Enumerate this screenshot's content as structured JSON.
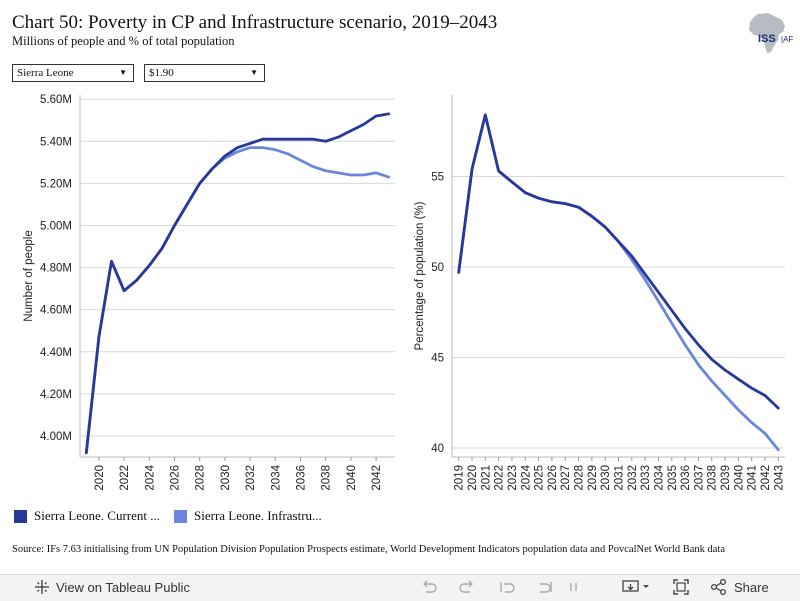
{
  "header": {
    "title": "Chart 50: Poverty in CP and Infrastructure scenario, 2019–2043",
    "subtitle": "Millions of people and % of total population",
    "logo_text": "ISS AFI"
  },
  "filters": {
    "country": "Sierra Leone",
    "threshold": "$1.90"
  },
  "colors": {
    "current_path": "#27389a",
    "infrastructure": "#6b87dc",
    "grid": "#d9d9d9"
  },
  "chart_data": [
    {
      "type": "line",
      "ylabel": "Number of people",
      "xlabel": "",
      "ylim": [
        3.9,
        5.62
      ],
      "yticks": [
        4.0,
        4.2,
        4.4,
        4.6,
        4.8,
        5.0,
        5.2,
        5.4,
        5.6
      ],
      "ytick_labels": [
        "4.00M",
        "4.20M",
        "4.40M",
        "4.60M",
        "4.80M",
        "5.00M",
        "5.20M",
        "5.40M",
        "5.60M"
      ],
      "xlim": [
        2018.5,
        2043.5
      ],
      "xticks": [
        2020,
        2022,
        2024,
        2026,
        2028,
        2030,
        2032,
        2034,
        2036,
        2038,
        2040,
        2042
      ],
      "grid": "horizontal",
      "x": [
        2019,
        2020,
        2021,
        2022,
        2023,
        2024,
        2025,
        2026,
        2027,
        2028,
        2029,
        2030,
        2031,
        2032,
        2033,
        2034,
        2035,
        2036,
        2037,
        2038,
        2039,
        2040,
        2041,
        2042,
        2043
      ],
      "series": [
        {
          "name": "Sierra Leone. Current ...",
          "color_key": "current_path",
          "values": [
            3.92,
            4.47,
            4.83,
            4.69,
            4.74,
            4.81,
            4.89,
            5.0,
            5.1,
            5.2,
            5.27,
            5.33,
            5.37,
            5.39,
            5.41,
            5.41,
            5.41,
            5.41,
            5.41,
            5.4,
            5.42,
            5.45,
            5.48,
            5.52,
            5.53
          ]
        },
        {
          "name": "Sierra Leone. Infrastru...",
          "color_key": "infrastructure",
          "values": [
            3.92,
            4.47,
            4.83,
            4.69,
            4.74,
            4.81,
            4.89,
            5.0,
            5.1,
            5.2,
            5.27,
            5.32,
            5.35,
            5.37,
            5.37,
            5.36,
            5.34,
            5.31,
            5.28,
            5.26,
            5.25,
            5.24,
            5.24,
            5.25,
            5.23
          ]
        }
      ]
    },
    {
      "type": "line",
      "ylabel": "Percentage of population (%)",
      "xlabel": "",
      "ylim": [
        39.5,
        59.5
      ],
      "yticks": [
        40,
        45,
        50,
        55
      ],
      "ytick_labels": [
        "40",
        "45",
        "50",
        "55"
      ],
      "xlim": [
        2018.5,
        2043.5
      ],
      "xticks": [
        2019,
        2020,
        2021,
        2022,
        2023,
        2024,
        2025,
        2026,
        2027,
        2028,
        2029,
        2030,
        2031,
        2032,
        2033,
        2034,
        2035,
        2036,
        2037,
        2038,
        2039,
        2040,
        2041,
        2042,
        2043
      ],
      "grid": "horizontal",
      "x": [
        2019,
        2020,
        2021,
        2022,
        2023,
        2024,
        2025,
        2026,
        2027,
        2028,
        2029,
        2030,
        2031,
        2032,
        2033,
        2034,
        2035,
        2036,
        2037,
        2038,
        2039,
        2040,
        2041,
        2042,
        2043
      ],
      "series": [
        {
          "name": "Sierra Leone. Current ...",
          "color_key": "current_path",
          "values": [
            49.7,
            55.4,
            58.4,
            55.3,
            54.7,
            54.1,
            53.8,
            53.6,
            53.5,
            53.3,
            52.8,
            52.2,
            51.4,
            50.6,
            49.6,
            48.6,
            47.6,
            46.6,
            45.7,
            44.9,
            44.3,
            43.8,
            43.3,
            42.9,
            42.2
          ]
        },
        {
          "name": "Sierra Leone. Infrastru...",
          "color_key": "infrastructure",
          "values": [
            49.7,
            55.4,
            58.4,
            55.3,
            54.7,
            54.1,
            53.8,
            53.6,
            53.5,
            53.3,
            52.8,
            52.2,
            51.4,
            50.4,
            49.3,
            48.1,
            46.9,
            45.7,
            44.6,
            43.7,
            42.9,
            42.1,
            41.4,
            40.8,
            39.9
          ]
        }
      ]
    }
  ],
  "legend": {
    "items": [
      "Sierra Leone. Current ...",
      "Sierra Leone. Infrastru..."
    ]
  },
  "source": "Source: IFs 7.63 initialising from UN Population Division Population Prospects estimate, World Development Indicators population data and PovcalNet World Bank data",
  "footer": {
    "view_label": "View on Tableau Public",
    "share_label": "Share"
  }
}
